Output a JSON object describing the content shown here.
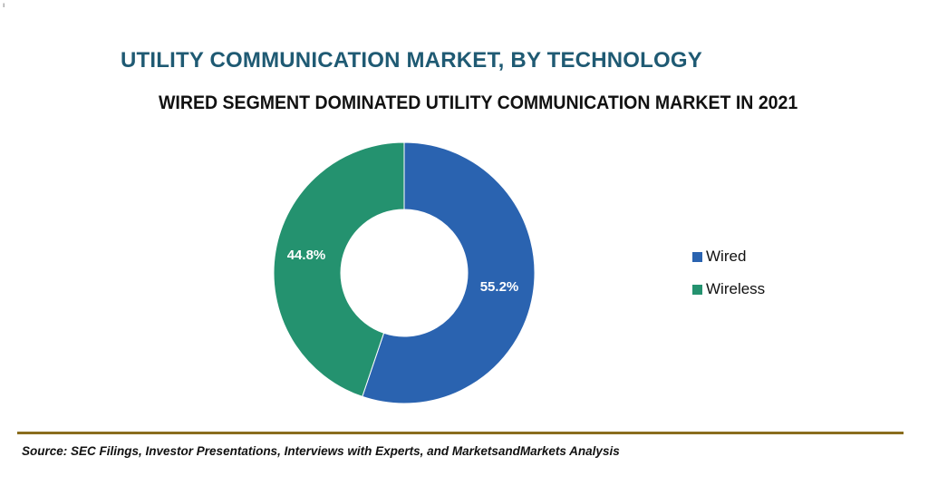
{
  "colors": {
    "title": "#1f5a73",
    "subtitle": "#111111",
    "wired": "#2a63b0",
    "wireless": "#24926f",
    "divider": "#8a6d1e",
    "background": "#ffffff"
  },
  "corner_mark": "ı",
  "chart_data": {
    "type": "pie",
    "variant": "donut",
    "title": "UTILITY COMMUNICATION MARKET, BY TECHNOLOGY",
    "subtitle": "WIRED SEGMENT DOMINATED UTILITY COMMUNICATION MARKET IN 2021",
    "legend_position": "right",
    "slices": [
      {
        "name": "Wired",
        "value": 55.2,
        "label": "55.2%",
        "color": "#2a63b0"
      },
      {
        "name": "Wireless",
        "value": 44.8,
        "label": "44.8%",
        "color": "#24926f"
      }
    ],
    "legend": [
      "Wired",
      "Wireless"
    ]
  },
  "source": "Source: SEC Filings, Investor Presentations, Interviews with Experts, and MarketsandMarkets Analysis"
}
